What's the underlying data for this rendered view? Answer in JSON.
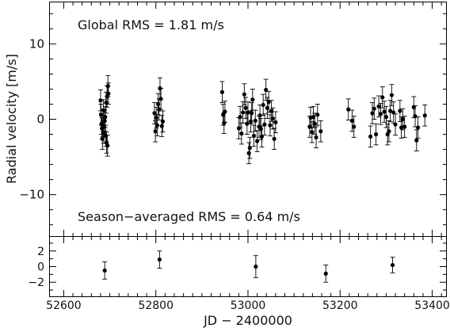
{
  "chart_data": [
    {
      "type": "scatter",
      "panel": "top",
      "ylabel": "Radial velocity [m/s]",
      "annotations": [
        "Global RMS = 1.81 m/s",
        "Season−averaged RMS = 0.64 m/s"
      ],
      "xlim": [
        52570,
        53430
      ],
      "ylim": [
        -15.5,
        15.5
      ],
      "yticks": [
        10,
        0,
        -10
      ],
      "ytick_labels": [
        "10",
        "0",
        "−10"
      ],
      "error_bars": true,
      "points": [
        {
          "x": 52680,
          "y": 2.5,
          "e": 1.4
        },
        {
          "x": 52681,
          "y": 0.6,
          "e": 1.4
        },
        {
          "x": 52682,
          "y": -0.6,
          "e": 1.4
        },
        {
          "x": 52683,
          "y": -1.2,
          "e": 1.4
        },
        {
          "x": 52684,
          "y": -2.6,
          "e": 1.4
        },
        {
          "x": 52685,
          "y": -0.9,
          "e": 1.4
        },
        {
          "x": 52686,
          "y": 1.2,
          "e": 1.4
        },
        {
          "x": 52687,
          "y": -1.8,
          "e": 1.4
        },
        {
          "x": 52689,
          "y": -0.2,
          "e": 1.4
        },
        {
          "x": 52690,
          "y": 0.3,
          "e": 1.4
        },
        {
          "x": 52691,
          "y": -2.2,
          "e": 1.4
        },
        {
          "x": 52692,
          "y": 2.2,
          "e": 1.4
        },
        {
          "x": 52693,
          "y": -3.1,
          "e": 1.4
        },
        {
          "x": 52694,
          "y": 3.0,
          "e": 1.4
        },
        {
          "x": 52695,
          "y": -3.5,
          "e": 1.4
        },
        {
          "x": 52696,
          "y": 4.4,
          "e": 1.4
        },
        {
          "x": 52697,
          "y": 3.4,
          "e": 1.4
        },
        {
          "x": 52797,
          "y": 0.8,
          "e": 1.4
        },
        {
          "x": 52799,
          "y": -1.6,
          "e": 1.4
        },
        {
          "x": 52801,
          "y": 0.2,
          "e": 1.4
        },
        {
          "x": 52803,
          "y": -0.8,
          "e": 1.4
        },
        {
          "x": 52805,
          "y": 2.0,
          "e": 1.4
        },
        {
          "x": 52807,
          "y": 1.3,
          "e": 1.4
        },
        {
          "x": 52809,
          "y": 4.1,
          "e": 1.4
        },
        {
          "x": 52811,
          "y": 2.7,
          "e": 1.4
        },
        {
          "x": 52813,
          "y": -0.9,
          "e": 1.4
        },
        {
          "x": 52815,
          "y": -0.3,
          "e": 1.4
        },
        {
          "x": 52944,
          "y": 3.6,
          "e": 1.4
        },
        {
          "x": 52946,
          "y": 0.6,
          "e": 1.4
        },
        {
          "x": 52948,
          "y": -0.5,
          "e": 1.4
        },
        {
          "x": 52950,
          "y": 1.0,
          "e": 1.4
        },
        {
          "x": 52980,
          "y": -1.2,
          "e": 1.4
        },
        {
          "x": 52983,
          "y": 0.3,
          "e": 1.4
        },
        {
          "x": 52986,
          "y": -1.9,
          "e": 1.4
        },
        {
          "x": 52989,
          "y": 0.9,
          "e": 1.4
        },
        {
          "x": 52992,
          "y": 3.3,
          "e": 1.4
        },
        {
          "x": 52995,
          "y": 1.5,
          "e": 1.4
        },
        {
          "x": 52998,
          "y": -0.6,
          "e": 1.4
        },
        {
          "x": 53000,
          "y": 0.9,
          "e": 1.4
        },
        {
          "x": 53002,
          "y": -4.5,
          "e": 1.4
        },
        {
          "x": 53004,
          "y": -3.8,
          "e": 1.4
        },
        {
          "x": 53006,
          "y": -0.3,
          "e": 1.4
        },
        {
          "x": 53008,
          "y": 0.8,
          "e": 1.4
        },
        {
          "x": 53010,
          "y": 2.6,
          "e": 1.4
        },
        {
          "x": 53013,
          "y": -2.2,
          "e": 1.4
        },
        {
          "x": 53016,
          "y": -0.2,
          "e": 1.4
        },
        {
          "x": 53020,
          "y": -2.9,
          "e": 1.4
        },
        {
          "x": 53024,
          "y": -1.0,
          "e": 1.4
        },
        {
          "x": 53026,
          "y": 0.5,
          "e": 1.4
        },
        {
          "x": 53028,
          "y": -1.3,
          "e": 1.4
        },
        {
          "x": 53030,
          "y": -2.3,
          "e": 1.4
        },
        {
          "x": 53033,
          "y": 1.9,
          "e": 1.4
        },
        {
          "x": 53036,
          "y": -0.7,
          "e": 1.4
        },
        {
          "x": 53039,
          "y": 3.9,
          "e": 1.4
        },
        {
          "x": 53042,
          "y": 1.5,
          "e": 1.4
        },
        {
          "x": 53045,
          "y": 2.3,
          "e": 1.4
        },
        {
          "x": 53048,
          "y": -0.8,
          "e": 1.4
        },
        {
          "x": 53051,
          "y": 1.1,
          "e": 1.4
        },
        {
          "x": 53054,
          "y": 0.1,
          "e": 1.4
        },
        {
          "x": 53057,
          "y": -2.6,
          "e": 1.4
        },
        {
          "x": 53060,
          "y": -0.4,
          "e": 1.4
        },
        {
          "x": 53134,
          "y": -1.0,
          "e": 1.4
        },
        {
          "x": 53136,
          "y": 0.2,
          "e": 1.4
        },
        {
          "x": 53139,
          "y": -1.7,
          "e": 1.4
        },
        {
          "x": 53142,
          "y": 0.3,
          "e": 1.4
        },
        {
          "x": 53145,
          "y": -0.6,
          "e": 1.4
        },
        {
          "x": 53148,
          "y": -2.4,
          "e": 1.4
        },
        {
          "x": 53151,
          "y": 0.6,
          "e": 1.4
        },
        {
          "x": 53158,
          "y": -1.6,
          "e": 1.4
        },
        {
          "x": 53218,
          "y": 1.3,
          "e": 1.4
        },
        {
          "x": 53226,
          "y": -0.2,
          "e": 1.4
        },
        {
          "x": 53230,
          "y": -1.0,
          "e": 1.4
        },
        {
          "x": 53266,
          "y": -2.3,
          "e": 1.4
        },
        {
          "x": 53270,
          "y": 0.8,
          "e": 1.4
        },
        {
          "x": 53274,
          "y": 1.4,
          "e": 1.4
        },
        {
          "x": 53278,
          "y": -2.0,
          "e": 1.4
        },
        {
          "x": 53284,
          "y": 1.7,
          "e": 1.4
        },
        {
          "x": 53288,
          "y": 0.7,
          "e": 1.4
        },
        {
          "x": 53292,
          "y": 2.9,
          "e": 1.4
        },
        {
          "x": 53296,
          "y": 1.0,
          "e": 1.4
        },
        {
          "x": 53300,
          "y": 0.3,
          "e": 1.4
        },
        {
          "x": 53303,
          "y": -2.0,
          "e": 1.4
        },
        {
          "x": 53306,
          "y": -1.6,
          "e": 1.4
        },
        {
          "x": 53309,
          "y": 1.1,
          "e": 1.4
        },
        {
          "x": 53312,
          "y": 3.2,
          "e": 1.4
        },
        {
          "x": 53316,
          "y": 0.9,
          "e": 1.4
        },
        {
          "x": 53320,
          "y": -0.7,
          "e": 1.4
        },
        {
          "x": 53330,
          "y": 1.1,
          "e": 1.4
        },
        {
          "x": 53333,
          "y": -1.1,
          "e": 1.4
        },
        {
          "x": 53336,
          "y": 0.0,
          "e": 1.4
        },
        {
          "x": 53340,
          "y": -1.0,
          "e": 1.4
        },
        {
          "x": 53360,
          "y": 1.6,
          "e": 1.4
        },
        {
          "x": 53363,
          "y": 0.4,
          "e": 1.4
        },
        {
          "x": 53366,
          "y": -2.8,
          "e": 1.4
        },
        {
          "x": 53369,
          "y": -1.1,
          "e": 1.4
        },
        {
          "x": 53384,
          "y": 0.5,
          "e": 1.4
        }
      ]
    },
    {
      "type": "scatter",
      "panel": "bottom",
      "xlabel": "JD − 2400000",
      "xlim": [
        52570,
        53430
      ],
      "ylim": [
        -3.8,
        3.8
      ],
      "xticks": [
        52600,
        52800,
        53000,
        53200,
        53400
      ],
      "xtick_labels": [
        "52600",
        "52800",
        "53000",
        "53200",
        "53400"
      ],
      "yticks": [
        2,
        0,
        -2
      ],
      "ytick_labels": [
        "2",
        "0",
        "−2"
      ],
      "error_bars": true,
      "points": [
        {
          "x": 52689,
          "y": -0.5,
          "e": 1.1
        },
        {
          "x": 52808,
          "y": 0.9,
          "e": 1.1
        },
        {
          "x": 53017,
          "y": 0.0,
          "e": 1.4
        },
        {
          "x": 53169,
          "y": -0.9,
          "e": 1.1
        },
        {
          "x": 53314,
          "y": 0.2,
          "e": 1.0
        }
      ]
    }
  ]
}
